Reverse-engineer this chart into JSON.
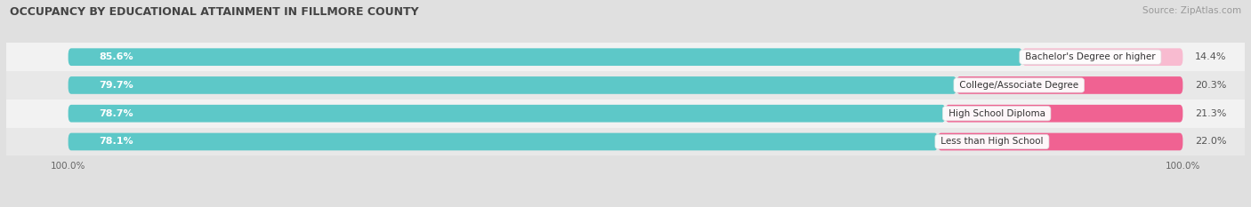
{
  "title": "OCCUPANCY BY EDUCATIONAL ATTAINMENT IN FILLMORE COUNTY",
  "source": "Source: ZipAtlas.com",
  "categories": [
    "Less than High School",
    "High School Diploma",
    "College/Associate Degree",
    "Bachelor's Degree or higher"
  ],
  "owner_pct": [
    78.1,
    78.7,
    79.7,
    85.6
  ],
  "renter_pct": [
    22.0,
    21.3,
    20.3,
    14.4
  ],
  "owner_color": "#5DC8C8",
  "renter_colors": [
    "#F06292",
    "#F06292",
    "#F06292",
    "#F8BBD0"
  ],
  "row_bg_colors": [
    "#E8E8E8",
    "#F2F2F2",
    "#E8E8E8",
    "#F2F2F2"
  ],
  "fig_bg_color": "#E0E0E0",
  "label_color": "#555555",
  "title_color": "#444444",
  "x_left_label": "100.0%",
  "x_right_label": "100.0%",
  "bar_height": 0.62,
  "figsize": [
    14.06,
    2.33
  ],
  "dpi": 100
}
